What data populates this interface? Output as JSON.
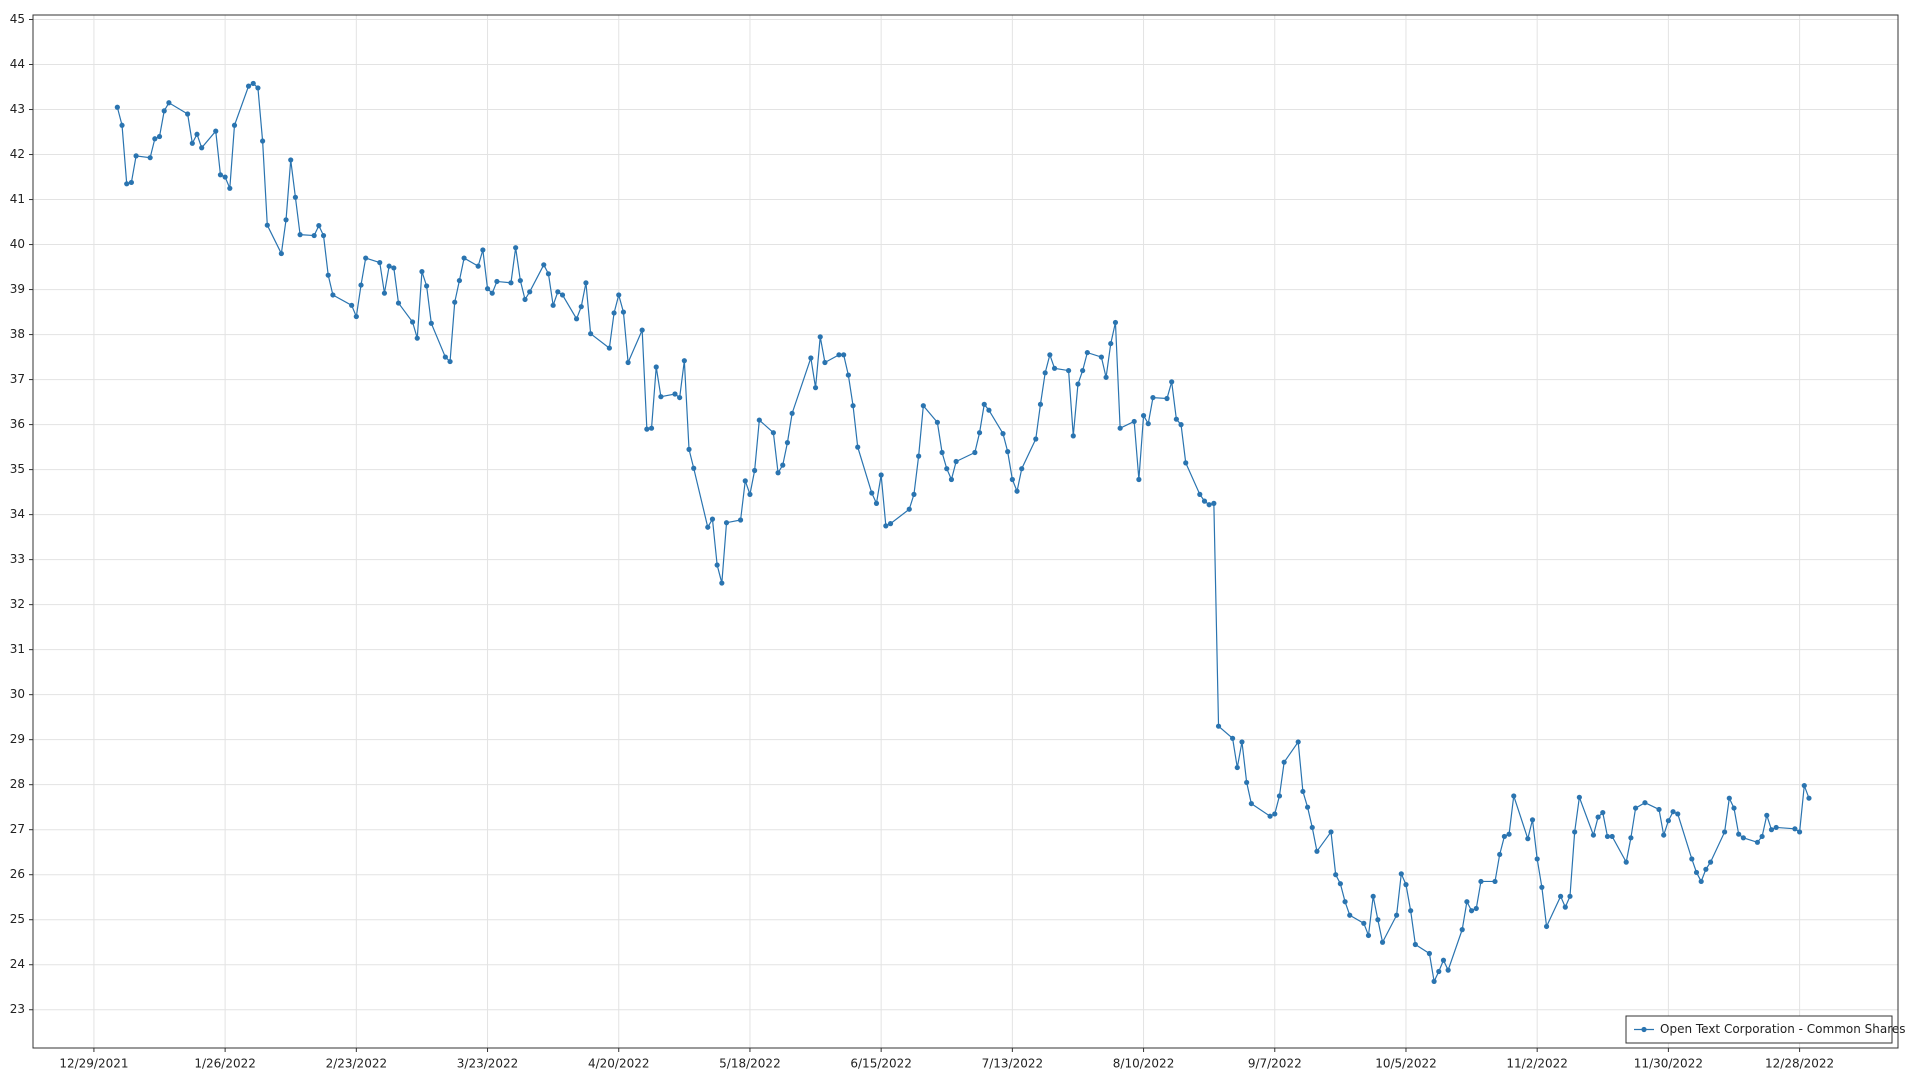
{
  "chart_data": {
    "type": "line",
    "grid": true,
    "legend": "lower right",
    "x": [
      "1/3/2022",
      "1/4/2022",
      "1/5/2022",
      "1/6/2022",
      "1/7/2022",
      "1/10/2022",
      "1/11/2022",
      "1/12/2022",
      "1/13/2022",
      "1/14/2022",
      "1/18/2022",
      "1/19/2022",
      "1/20/2022",
      "1/21/2022",
      "1/24/2022",
      "1/25/2022",
      "1/26/2022",
      "1/27/2022",
      "1/28/2022",
      "1/31/2022",
      "2/1/2022",
      "2/2/2022",
      "2/3/2022",
      "2/4/2022",
      "2/7/2022",
      "2/8/2022",
      "2/9/2022",
      "2/10/2022",
      "2/11/2022",
      "2/14/2022",
      "2/15/2022",
      "2/16/2022",
      "2/17/2022",
      "2/18/2022",
      "2/22/2022",
      "2/23/2022",
      "2/24/2022",
      "2/25/2022",
      "2/28/2022",
      "3/1/2022",
      "3/2/2022",
      "3/3/2022",
      "3/4/2022",
      "3/7/2022",
      "3/8/2022",
      "3/9/2022",
      "3/10/2022",
      "3/11/2022",
      "3/14/2022",
      "3/15/2022",
      "3/16/2022",
      "3/17/2022",
      "3/18/2022",
      "3/21/2022",
      "3/22/2022",
      "3/23/2022",
      "3/24/2022",
      "3/25/2022",
      "3/28/2022",
      "3/29/2022",
      "3/30/2022",
      "3/31/2022",
      "4/1/2022",
      "4/4/2022",
      "4/5/2022",
      "4/6/2022",
      "4/7/2022",
      "4/8/2022",
      "4/11/2022",
      "4/12/2022",
      "4/13/2022",
      "4/14/2022",
      "4/18/2022",
      "4/19/2022",
      "4/20/2022",
      "4/21/2022",
      "4/22/2022",
      "4/25/2022",
      "4/26/2022",
      "4/27/2022",
      "4/28/2022",
      "4/29/2022",
      "5/2/2022",
      "5/3/2022",
      "5/4/2022",
      "5/5/2022",
      "5/6/2022",
      "5/9/2022",
      "5/10/2022",
      "5/11/2022",
      "5/12/2022",
      "5/13/2022",
      "5/16/2022",
      "5/17/2022",
      "5/18/2022",
      "5/19/2022",
      "5/20/2022",
      "5/23/2022",
      "5/24/2022",
      "5/25/2022",
      "5/26/2022",
      "5/27/2022",
      "5/31/2022",
      "6/1/2022",
      "6/2/2022",
      "6/3/2022",
      "6/6/2022",
      "6/7/2022",
      "6/8/2022",
      "6/9/2022",
      "6/10/2022",
      "6/13/2022",
      "6/14/2022",
      "6/15/2022",
      "6/16/2022",
      "6/17/2022",
      "6/21/2022",
      "6/22/2022",
      "6/23/2022",
      "6/24/2022",
      "6/27/2022",
      "6/28/2022",
      "6/29/2022",
      "6/30/2022",
      "7/1/2022",
      "7/5/2022",
      "7/6/2022",
      "7/7/2022",
      "7/8/2022",
      "7/11/2022",
      "7/12/2022",
      "7/13/2022",
      "7/14/2022",
      "7/15/2022",
      "7/18/2022",
      "7/19/2022",
      "7/20/2022",
      "7/21/2022",
      "7/22/2022",
      "7/25/2022",
      "7/26/2022",
      "7/27/2022",
      "7/28/2022",
      "7/29/2022",
      "8/1/2022",
      "8/2/2022",
      "8/3/2022",
      "8/4/2022",
      "8/5/2022",
      "8/8/2022",
      "8/9/2022",
      "8/10/2022",
      "8/11/2022",
      "8/12/2022",
      "8/15/2022",
      "8/16/2022",
      "8/17/2022",
      "8/18/2022",
      "8/19/2022",
      "8/22/2022",
      "8/23/2022",
      "8/24/2022",
      "8/25/2022",
      "8/26/2022",
      "8/29/2022",
      "8/30/2022",
      "8/31/2022",
      "9/1/2022",
      "9/2/2022",
      "9/6/2022",
      "9/7/2022",
      "9/8/2022",
      "9/9/2022",
      "9/12/2022",
      "9/13/2022",
      "9/14/2022",
      "9/15/2022",
      "9/16/2022",
      "9/19/2022",
      "9/20/2022",
      "9/21/2022",
      "9/22/2022",
      "9/23/2022",
      "9/26/2022",
      "9/27/2022",
      "9/28/2022",
      "9/29/2022",
      "9/30/2022",
      "10/3/2022",
      "10/4/2022",
      "10/5/2022",
      "10/6/2022",
      "10/7/2022",
      "10/10/2022",
      "10/11/2022",
      "10/12/2022",
      "10/13/2022",
      "10/14/2022",
      "10/17/2022",
      "10/18/2022",
      "10/19/2022",
      "10/20/2022",
      "10/21/2022",
      "10/24/2022",
      "10/25/2022",
      "10/26/2022",
      "10/27/2022",
      "10/28/2022",
      "10/31/2022",
      "11/1/2022",
      "11/2/2022",
      "11/3/2022",
      "11/4/2022",
      "11/7/2022",
      "11/8/2022",
      "11/9/2022",
      "11/10/2022",
      "11/11/2022",
      "11/14/2022",
      "11/15/2022",
      "11/16/2022",
      "11/17/2022",
      "11/18/2022",
      "11/21/2022",
      "11/22/2022",
      "11/23/2022",
      "11/25/2022",
      "11/28/2022",
      "11/29/2022",
      "11/30/2022",
      "12/1/2022",
      "12/2/2022",
      "12/5/2022",
      "12/6/2022",
      "12/7/2022",
      "12/8/2022",
      "12/9/2022",
      "12/12/2022",
      "12/13/2022",
      "12/14/2022",
      "12/15/2022",
      "12/16/2022",
      "12/19/2022",
      "12/20/2022",
      "12/21/2022",
      "12/22/2022",
      "12/23/2022",
      "12/27/2022",
      "12/28/2022",
      "12/29/2022",
      "12/30/2022"
    ],
    "series": [
      {
        "name": "Open Text Corporation - Common Shares",
        "color": "#2a74b0",
        "values": [
          43.05,
          42.65,
          41.35,
          41.38,
          41.97,
          41.93,
          42.35,
          42.4,
          42.97,
          43.15,
          42.9,
          42.25,
          42.45,
          42.15,
          42.52,
          41.55,
          41.5,
          41.25,
          42.65,
          43.52,
          43.58,
          43.48,
          42.3,
          40.43,
          39.8,
          40.55,
          41.88,
          41.05,
          40.22,
          40.2,
          40.42,
          40.2,
          39.32,
          38.88,
          38.65,
          38.4,
          39.1,
          39.7,
          39.6,
          38.92,
          39.52,
          39.48,
          38.7,
          38.28,
          37.92,
          39.4,
          39.08,
          38.25,
          37.5,
          37.4,
          38.72,
          39.2,
          39.7,
          39.52,
          39.88,
          39.02,
          38.92,
          39.18,
          39.15,
          39.93,
          39.2,
          38.78,
          38.95,
          39.55,
          39.35,
          38.65,
          38.95,
          38.88,
          38.35,
          38.62,
          39.15,
          38.02,
          37.7,
          38.48,
          38.88,
          38.5,
          37.38,
          38.1,
          35.9,
          35.92,
          37.28,
          36.62,
          36.68,
          36.6,
          37.42,
          35.45,
          35.03,
          33.72,
          33.9,
          32.88,
          32.48,
          33.82,
          33.88,
          34.75,
          34.45,
          34.98,
          36.1,
          35.82,
          34.93,
          35.1,
          35.6,
          36.25,
          37.48,
          36.82,
          37.95,
          37.38,
          37.55,
          37.55,
          37.1,
          36.42,
          35.5,
          34.48,
          34.25,
          34.88,
          33.75,
          33.8,
          34.12,
          34.45,
          35.3,
          36.42,
          36.05,
          35.38,
          35.02,
          34.78,
          35.18,
          35.38,
          35.82,
          36.45,
          36.32,
          35.8,
          35.4,
          34.78,
          34.52,
          35.02,
          35.68,
          36.45,
          37.15,
          37.55,
          37.25,
          37.2,
          35.75,
          36.9,
          37.2,
          37.6,
          37.5,
          37.05,
          37.8,
          38.27,
          35.92,
          36.07,
          34.78,
          36.2,
          36.02,
          36.6,
          36.58,
          36.95,
          36.12,
          36.0,
          35.15,
          34.45,
          34.3,
          34.22,
          34.25,
          29.3,
          29.03,
          28.38,
          28.95,
          28.05,
          27.58,
          27.3,
          27.35,
          27.75,
          28.5,
          28.95,
          27.85,
          27.5,
          27.05,
          26.52,
          26.95,
          26.0,
          25.8,
          25.4,
          25.1,
          24.92,
          24.65,
          25.52,
          25.0,
          24.5,
          25.1,
          26.02,
          25.78,
          25.2,
          24.45,
          24.25,
          23.63,
          23.85,
          24.1,
          23.88,
          24.78,
          25.4,
          25.2,
          25.25,
          25.85,
          25.85,
          26.45,
          26.85,
          26.9,
          27.75,
          26.8,
          27.22,
          26.35,
          25.72,
          24.85,
          25.52,
          25.28,
          25.52,
          26.95,
          27.72,
          26.88,
          27.28,
          27.38,
          26.85,
          26.85,
          26.28,
          26.82,
          27.48,
          27.6,
          27.45,
          26.88,
          27.2,
          27.4,
          27.35,
          26.35,
          26.05,
          25.85,
          26.12,
          26.28,
          26.95,
          27.7,
          27.48,
          26.9,
          26.82,
          26.72,
          26.85,
          27.32,
          27.0,
          27.05,
          27.02,
          26.95,
          27.98,
          27.7
        ]
      }
    ],
    "xlim": [
      "12/16/2021",
      "1/18/2023"
    ],
    "xticks": [
      "12/29/2021",
      "1/26/2022",
      "2/23/2022",
      "3/23/2022",
      "4/20/2022",
      "5/18/2022",
      "6/15/2022",
      "7/13/2022",
      "8/10/2022",
      "9/7/2022",
      "10/5/2022",
      "11/2/2022",
      "11/30/2022",
      "12/28/2022"
    ],
    "ylim": [
      22.15,
      45.1
    ],
    "yticks": [
      23,
      24,
      25,
      26,
      27,
      28,
      29,
      30,
      31,
      32,
      33,
      34,
      35,
      36,
      37,
      38,
      39,
      40,
      41,
      42,
      43,
      44,
      45
    ]
  }
}
